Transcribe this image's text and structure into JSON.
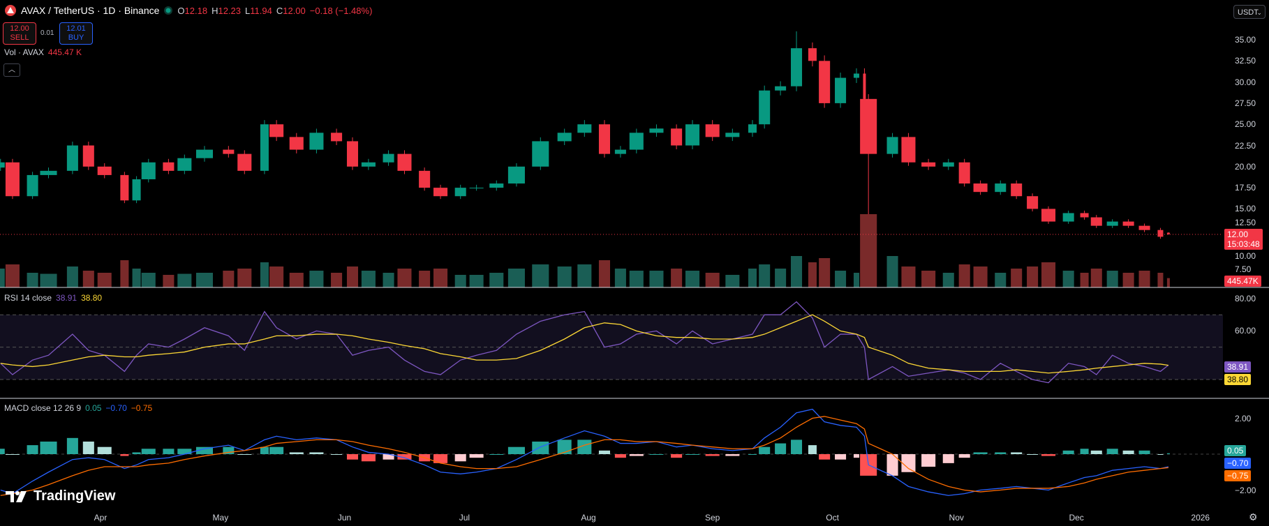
{
  "header": {
    "symbol": "AVAX / TetherUS · 1D · Binance",
    "o_label": "O",
    "o": "12.18",
    "h_label": "H",
    "h": "12.23",
    "l_label": "L",
    "l": "11.94",
    "c_label": "C",
    "c": "12.00",
    "change": "−0.18 (−1.48%)"
  },
  "trade": {
    "sell_price": "12.00",
    "sell_label": "SELL",
    "spread": "0.01",
    "buy_price": "12.01",
    "buy_label": "BUY"
  },
  "volume_legend": {
    "label": "Vol · AVAX",
    "value": "445.47 K"
  },
  "rsi_legend": {
    "label": "RSI 14 close",
    "rsi": "38.91",
    "ma": "38.80"
  },
  "macd_legend": {
    "label": "MACD close 12 26 9",
    "hist": "0.05",
    "macd": "−0.70",
    "signal": "−0.75"
  },
  "currency_select": "USDT",
  "price_tag": {
    "price": "12.00",
    "countdown": "15:03:48"
  },
  "volume_tag": "445.47K",
  "rsi_tags": {
    "rsi": "38.91",
    "ma": "38.80"
  },
  "macd_tags": {
    "hist": "0.05",
    "macd": "−0.70",
    "signal": "−0.75"
  },
  "branding": "TradingView",
  "colors": {
    "up": "#089981",
    "down": "#f23645",
    "vol_up": "#1a5e55",
    "vol_down": "#7a2a2a",
    "rsi": "#7e57c2",
    "rsi_ma": "#fdd835",
    "macd": "#2962ff",
    "signal": "#ff6d00"
  },
  "chart_data": {
    "type": "candlestick",
    "price_axis": {
      "ticks": [
        "35.00",
        "32.50",
        "30.00",
        "27.50",
        "25.00",
        "22.50",
        "20.00",
        "17.50",
        "15.00",
        "12.50",
        "10.00",
        "7.50"
      ],
      "ylim": [
        7.5,
        36
      ]
    },
    "time_axis": {
      "ticks": [
        {
          "label": "Apr",
          "date": "2025-04-01"
        },
        {
          "label": "May",
          "date": "2025-05-01"
        },
        {
          "label": "Jun",
          "date": "2025-06-01"
        },
        {
          "label": "Jul",
          "date": "2025-07-01"
        },
        {
          "label": "Aug",
          "date": "2025-08-01"
        },
        {
          "label": "Sep",
          "date": "2025-09-01"
        },
        {
          "label": "Oct",
          "date": "2025-10-01"
        },
        {
          "label": "Nov",
          "date": "2025-11-01"
        },
        {
          "label": "Dec",
          "date": "2025-12-01"
        },
        {
          "label": "2026",
          "date": "2026-01-01"
        }
      ]
    },
    "dates": [
      "2025-03-07",
      "2025-03-10",
      "2025-03-15",
      "2025-03-19",
      "2025-03-25",
      "2025-03-29",
      "2025-04-02",
      "2025-04-07",
      "2025-04-10",
      "2025-04-13",
      "2025-04-18",
      "2025-04-22",
      "2025-04-27",
      "2025-05-03",
      "2025-05-07",
      "2025-05-12",
      "2025-05-15",
      "2025-05-20",
      "2025-05-25",
      "2025-05-30",
      "2025-06-03",
      "2025-06-07",
      "2025-06-12",
      "2025-06-16",
      "2025-06-21",
      "2025-06-25",
      "2025-06-30",
      "2025-07-04",
      "2025-07-09",
      "2025-07-14",
      "2025-07-20",
      "2025-07-26",
      "2025-07-31",
      "2025-08-05",
      "2025-08-09",
      "2025-08-13",
      "2025-08-18",
      "2025-08-23",
      "2025-08-27",
      "2025-09-01",
      "2025-09-06",
      "2025-09-11",
      "2025-09-14",
      "2025-09-18",
      "2025-09-22",
      "2025-09-26",
      "2025-09-29",
      "2025-10-03",
      "2025-10-07",
      "2025-10-09",
      "2025-10-10",
      "2025-10-16",
      "2025-10-20",
      "2025-10-25",
      "2025-10-30",
      "2025-11-03",
      "2025-11-07",
      "2025-11-12",
      "2025-11-16",
      "2025-11-20",
      "2025-11-24",
      "2025-11-29",
      "2025-12-03",
      "2025-12-06",
      "2025-12-10",
      "2025-12-14",
      "2025-12-18",
      "2025-12-22",
      "2025-12-24"
    ],
    "close": [
      20.5,
      16.5,
      19,
      19.5,
      22.5,
      20,
      19,
      16,
      18.5,
      20.5,
      19.5,
      21,
      22,
      21.5,
      19.5,
      25,
      23.5,
      22,
      24,
      23,
      20,
      20.5,
      21.5,
      19.5,
      17.5,
      16.5,
      17.5,
      17.5,
      18,
      20,
      23,
      24,
      25,
      21.5,
      22,
      24,
      24.5,
      22.5,
      25,
      23.5,
      24,
      25,
      29,
      29.5,
      34,
      32.5,
      27.5,
      30.5,
      31,
      28,
      21.5,
      23.5,
      20.5,
      20,
      20.5,
      18,
      17,
      18,
      16.5,
      15,
      13.5,
      14.5,
      14,
      13,
      13.5,
      13,
      12.5,
      11.7,
      12.0
    ],
    "extremes": [
      {
        "date": "2025-09-22",
        "high": 36.0
      },
      {
        "date": "2025-10-10",
        "low": 10.0
      }
    ],
    "last": {
      "open": 12.18,
      "high": 12.23,
      "low": 11.94,
      "close": 12.0
    },
    "volume_k": [
      900,
      1100,
      700,
      650,
      1000,
      800,
      700,
      1300,
      900,
      700,
      600,
      650,
      700,
      800,
      900,
      1200,
      1000,
      700,
      800,
      700,
      1000,
      800,
      700,
      900,
      800,
      900,
      600,
      600,
      700,
      900,
      1100,
      1000,
      1100,
      1300,
      900,
      800,
      800,
      900,
      800,
      700,
      600,
      900,
      1100,
      900,
      1500,
      1200,
      1400,
      800,
      700,
      1200,
      3500,
      1500,
      1000,
      800,
      700,
      1100,
      1000,
      700,
      900,
      1000,
      1200,
      800,
      700,
      900,
      800,
      700,
      800,
      700,
      445.47
    ],
    "rsi": {
      "axis_ticks": [
        "80.00",
        "60.00"
      ],
      "bands": [
        70,
        50,
        30
      ],
      "values": [
        40,
        33,
        42,
        45,
        58,
        48,
        45,
        35,
        45,
        52,
        50,
        55,
        62,
        57,
        48,
        72,
        62,
        55,
        60,
        58,
        45,
        48,
        50,
        42,
        35,
        33,
        42,
        45,
        48,
        58,
        66,
        70,
        72,
        50,
        52,
        58,
        60,
        52,
        60,
        52,
        55,
        58,
        70,
        70,
        78,
        68,
        50,
        58,
        58,
        50,
        30,
        38,
        32,
        34,
        36,
        34,
        30,
        40,
        35,
        30,
        28,
        40,
        38,
        33,
        45,
        40,
        38,
        35,
        38.91
      ],
      "ma": [
        40,
        39,
        38,
        39,
        42,
        44,
        45,
        44,
        44,
        45,
        46,
        47,
        50,
        52,
        52,
        55,
        57,
        57,
        58,
        58,
        57,
        55,
        53,
        51,
        49,
        46,
        44,
        42,
        42,
        43,
        48,
        55,
        62,
        65,
        64,
        60,
        57,
        56,
        56,
        55,
        55,
        56,
        58,
        62,
        66,
        70,
        66,
        60,
        58,
        56,
        50,
        45,
        40,
        37,
        36,
        35,
        35,
        35,
        36,
        35,
        34,
        35,
        36,
        37,
        38,
        39,
        40,
        39.5,
        38.8
      ]
    },
    "macd": {
      "axis_ticks": [
        "2.00",
        "−2.00"
      ],
      "macd": [
        -2.0,
        -2.2,
        -1.5,
        -1.0,
        -0.3,
        -0.2,
        -0.3,
        -0.8,
        -0.6,
        -0.3,
        -0.2,
        0,
        0.3,
        0.5,
        0.2,
        0.8,
        1.0,
        0.8,
        0.9,
        0.8,
        0.4,
        0.1,
        0,
        -0.2,
        -0.6,
        -1.0,
        -1.1,
        -1.0,
        -0.8,
        -0.3,
        0.4,
        0.9,
        1.3,
        1.0,
        0.6,
        0.6,
        0.7,
        0.4,
        0.5,
        0.3,
        0.2,
        0.3,
        0.9,
        1.5,
        2.3,
        2.5,
        1.8,
        1.6,
        1.5,
        1.0,
        -0.6,
        -1.2,
        -1.8,
        -2.1,
        -2.3,
        -2.2,
        -2.0,
        -1.9,
        -1.8,
        -1.9,
        -2.0,
        -1.6,
        -1.3,
        -1.2,
        -0.9,
        -0.8,
        -0.7,
        -0.8,
        -0.7
      ],
      "signal": [
        -2.3,
        -2.2,
        -2.0,
        -1.7,
        -1.2,
        -0.9,
        -0.7,
        -0.7,
        -0.7,
        -0.6,
        -0.5,
        -0.3,
        -0.1,
        0.1,
        0.2,
        0.4,
        0.6,
        0.7,
        0.8,
        0.8,
        0.7,
        0.5,
        0.3,
        0.1,
        -0.2,
        -0.5,
        -0.7,
        -0.8,
        -0.8,
        -0.7,
        -0.3,
        0.1,
        0.5,
        0.8,
        0.8,
        0.7,
        0.7,
        0.6,
        0.5,
        0.4,
        0.3,
        0.3,
        0.5,
        0.9,
        1.5,
        2.0,
        2.1,
        1.9,
        1.7,
        1.4,
        0.6,
        0,
        -0.8,
        -1.4,
        -1.8,
        -2.0,
        -2.1,
        -2.0,
        -1.9,
        -1.9,
        -1.9,
        -1.8,
        -1.6,
        -1.4,
        -1.2,
        -1.0,
        -0.9,
        -0.8,
        -0.75
      ]
    }
  }
}
